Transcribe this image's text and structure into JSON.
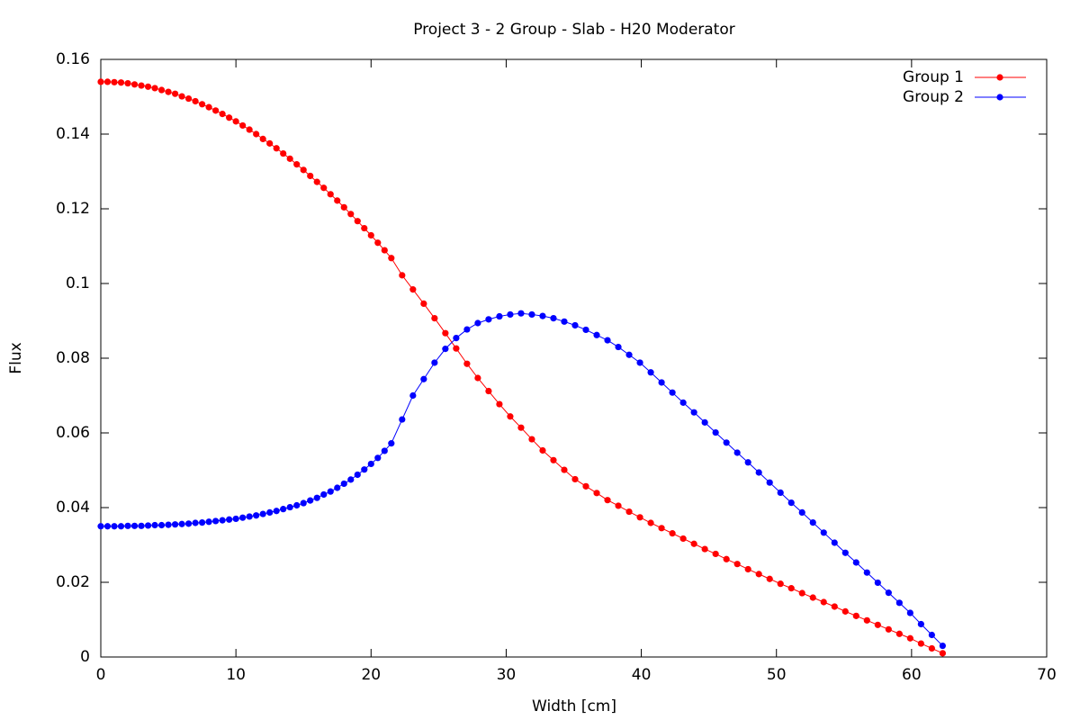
{
  "chart_data": {
    "type": "line",
    "title": "Project 3 - 2 Group - Slab - H20 Moderator",
    "x_label": "Width [cm]",
    "y_label": "Flux",
    "xlim": [
      0,
      70
    ],
    "ylim": [
      0,
      0.16
    ],
    "xticks": [
      0,
      10,
      20,
      30,
      40,
      50,
      60,
      70
    ],
    "yticks": [
      0,
      0.02,
      0.04,
      0.06,
      0.08,
      0.1,
      0.12,
      0.14,
      0.16
    ],
    "grid": false,
    "legend": "top-right",
    "x": [
      0,
      0.5,
      1,
      1.5,
      2,
      2.5,
      3,
      3.5,
      4,
      4.5,
      5,
      5.5,
      6,
      6.5,
      7,
      7.5,
      8,
      8.5,
      9,
      9.5,
      10,
      10.5,
      11,
      11.5,
      12,
      12.5,
      13,
      13.5,
      14,
      14.5,
      15,
      15.5,
      16,
      16.5,
      17,
      17.5,
      18,
      18.5,
      19,
      19.5,
      20,
      20.5,
      21,
      21.5,
      22.3,
      23.1,
      23.9,
      24.7,
      25.5,
      26.3,
      27.1,
      27.9,
      28.7,
      29.5,
      30.3,
      31.1,
      31.9,
      32.7,
      33.5,
      34.3,
      35.1,
      35.9,
      36.7,
      37.5,
      38.3,
      39.1,
      39.9,
      40.7,
      41.5,
      42.3,
      43.1,
      43.9,
      44.7,
      45.5,
      46.3,
      47.1,
      47.9,
      48.7,
      49.5,
      50.3,
      51.1,
      51.9,
      52.7,
      53.5,
      54.3,
      55.1,
      55.9,
      56.7,
      57.5,
      58.3,
      59.1,
      59.9,
      60.7,
      61.5,
      62.3
    ],
    "series": [
      {
        "name": "Group 1",
        "color": "#ff0000",
        "values": [
          0.154,
          0.154,
          0.1539,
          0.1538,
          0.1536,
          0.1533,
          0.153,
          0.1527,
          0.1523,
          0.1518,
          0.1513,
          0.1508,
          0.1501,
          0.1495,
          0.1488,
          0.148,
          0.1472,
          0.1463,
          0.1454,
          0.1444,
          0.1434,
          0.1423,
          0.1412,
          0.14,
          0.1387,
          0.1375,
          0.1362,
          0.1348,
          0.1334,
          0.1319,
          0.1304,
          0.1288,
          0.1272,
          0.1256,
          0.1239,
          0.1222,
          0.1204,
          0.1186,
          0.1167,
          0.1148,
          0.1129,
          0.1109,
          0.1089,
          0.1068,
          0.1022,
          0.0984,
          0.0946,
          0.0907,
          0.0867,
          0.0826,
          0.0785,
          0.0747,
          0.0712,
          0.0677,
          0.0644,
          0.0614,
          0.0583,
          0.0553,
          0.0527,
          0.0501,
          0.0476,
          0.0457,
          0.0439,
          0.042,
          0.0405,
          0.0389,
          0.0374,
          0.0359,
          0.0345,
          0.0331,
          0.0317,
          0.0303,
          0.0289,
          0.0276,
          0.0262,
          0.0249,
          0.0235,
          0.0222,
          0.0209,
          0.0196,
          0.0184,
          0.0171,
          0.0159,
          0.0147,
          0.0135,
          0.0122,
          0.011,
          0.0098,
          0.0086,
          0.0074,
          0.0062,
          0.005,
          0.0036,
          0.0023,
          0.001
        ]
      },
      {
        "name": "Group 2",
        "color": "#0000ff",
        "values": [
          0.035,
          0.035,
          0.035,
          0.035,
          0.0351,
          0.0351,
          0.0351,
          0.0352,
          0.0353,
          0.0353,
          0.0354,
          0.0355,
          0.0356,
          0.0357,
          0.0359,
          0.036,
          0.0362,
          0.0364,
          0.0366,
          0.0368,
          0.037,
          0.0373,
          0.0376,
          0.0379,
          0.0383,
          0.0387,
          0.0391,
          0.0396,
          0.0401,
          0.0406,
          0.0412,
          0.0419,
          0.0426,
          0.0435,
          0.0443,
          0.0453,
          0.0464,
          0.0475,
          0.0488,
          0.0502,
          0.0517,
          0.0533,
          0.0552,
          0.0572,
          0.0636,
          0.07,
          0.0744,
          0.0788,
          0.0825,
          0.0854,
          0.0877,
          0.0894,
          0.0904,
          0.0912,
          0.0917,
          0.092,
          0.0917,
          0.0913,
          0.0907,
          0.0898,
          0.0888,
          0.0876,
          0.0862,
          0.0848,
          0.083,
          0.0809,
          0.0788,
          0.0762,
          0.0735,
          0.0708,
          0.0681,
          0.0655,
          0.0628,
          0.0601,
          0.0574,
          0.0547,
          0.0521,
          0.0494,
          0.0467,
          0.044,
          0.0413,
          0.0387,
          0.036,
          0.0333,
          0.0306,
          0.0279,
          0.0253,
          0.0226,
          0.0199,
          0.0172,
          0.0145,
          0.0118,
          0.0088,
          0.0059,
          0.003
        ]
      }
    ]
  }
}
